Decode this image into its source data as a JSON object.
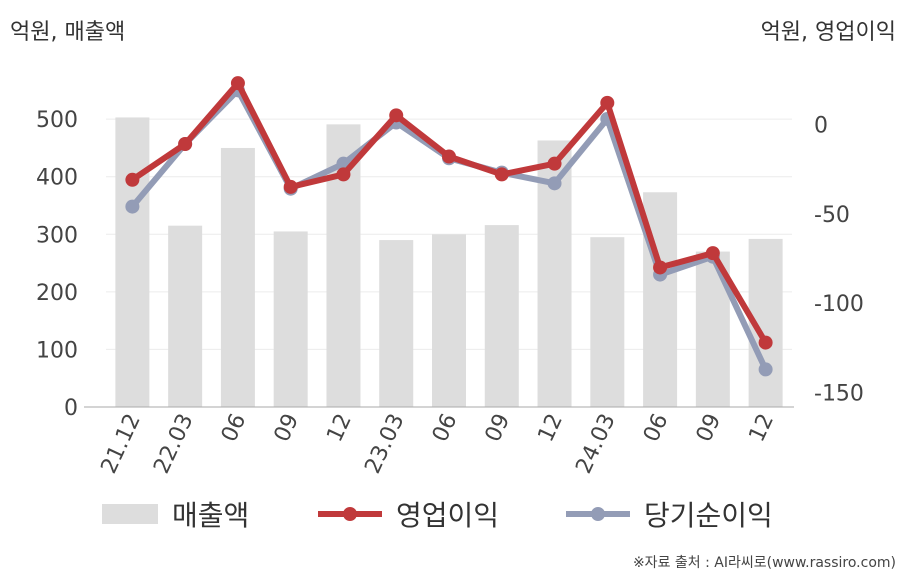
{
  "units": {
    "left": "억원, 매출액",
    "right": "억원, 영업이익"
  },
  "chart_data": {
    "type": "bar+line",
    "categories": [
      "21.12",
      "22.03",
      "06",
      "09",
      "12",
      "23.03",
      "06",
      "09",
      "12",
      "24.03",
      "06",
      "09",
      "12"
    ],
    "left_axis": {
      "ticks": [
        0,
        100,
        200,
        300,
        400,
        500
      ],
      "range": [
        0,
        575
      ]
    },
    "right_axis": {
      "ticks": [
        0,
        -50,
        -100,
        -150
      ],
      "range": [
        -158,
        27
      ]
    },
    "series": [
      {
        "name": "매출액",
        "kind": "bar",
        "axis": "left",
        "color": "#dddddd",
        "values": [
          503,
          315,
          450,
          305,
          491,
          290,
          300,
          316,
          463,
          295,
          373,
          270,
          292
        ]
      },
      {
        "name": "영업이익",
        "kind": "line",
        "axis": "right",
        "color": "#c0393b",
        "values": [
          -31,
          -11,
          23,
          -35,
          -28,
          5,
          -18,
          -28,
          -22,
          12,
          -80,
          -72,
          -122
        ]
      },
      {
        "name": "당기순이익",
        "kind": "line",
        "axis": "right",
        "color": "#939cb6",
        "values": [
          -46,
          -11,
          19,
          -36,
          -22,
          1,
          -19,
          -27,
          -33,
          3,
          -84,
          -74,
          -137
        ]
      }
    ]
  },
  "source": "※자료 출처 : AI라씨로(www.rassiro.com)"
}
